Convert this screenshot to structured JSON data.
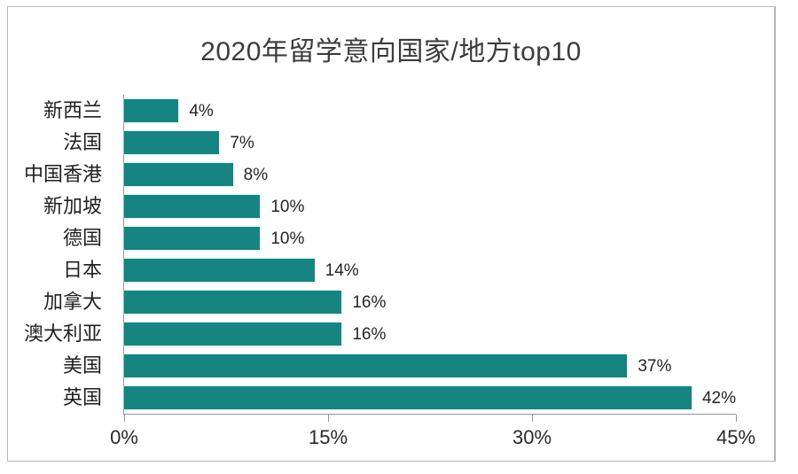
{
  "chart_data": {
    "type": "bar",
    "orientation": "horizontal",
    "title": "2020年留学意向国家/地方top10",
    "categories": [
      "新西兰",
      "法国",
      "中国香港",
      "新加坡",
      "德国",
      "日本",
      "加拿大",
      "澳大利亚",
      "美国",
      "英国"
    ],
    "values": [
      4,
      7,
      8,
      10,
      10,
      14,
      16,
      16,
      37,
      42
    ],
    "value_labels": [
      "4%",
      "7%",
      "8%",
      "10%",
      "10%",
      "14%",
      "16%",
      "16%",
      "37%",
      "42%"
    ],
    "xlabel": "",
    "ylabel": "",
    "xlim": [
      0,
      45
    ],
    "xticks": [
      {
        "value": 0,
        "label": "0%"
      },
      {
        "value": 15,
        "label": "15%"
      },
      {
        "value": 30,
        "label": "30%"
      },
      {
        "value": 45,
        "label": "45%"
      }
    ],
    "grid": false,
    "legend": false,
    "bar_color": "#168480",
    "title_color": "#3c3c3c",
    "axis_color": "#8f9598"
  }
}
